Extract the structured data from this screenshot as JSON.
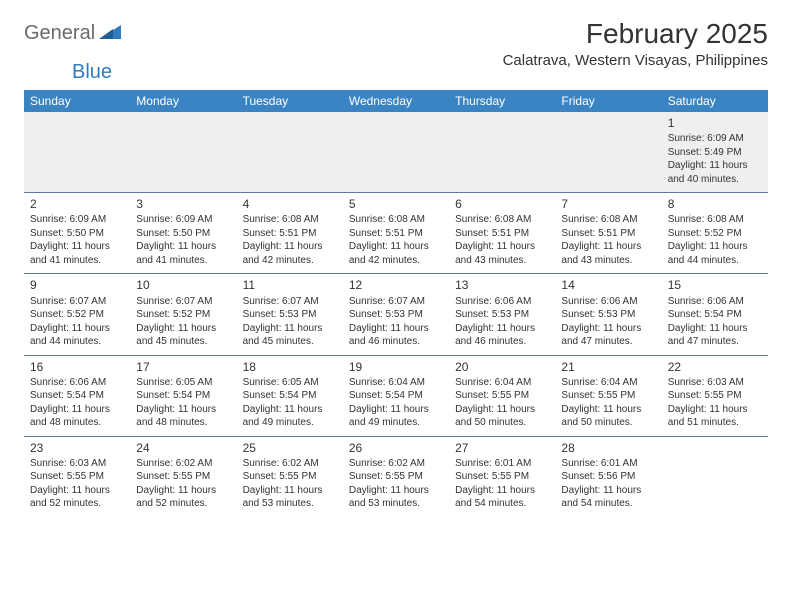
{
  "brand": {
    "general": "General",
    "blue": "Blue"
  },
  "header": {
    "month_title": "February 2025",
    "location": "Calatrava, Western Visayas, Philippines"
  },
  "colors": {
    "header_bg": "#3b84c4",
    "header_text": "#ffffff",
    "row_border": "#5c7a99",
    "first_week_bg": "#efefef",
    "page_bg": "#ffffff",
    "text": "#333333",
    "logo_gray": "#6a6a6a",
    "logo_blue": "#2f7bbf"
  },
  "weekdays": [
    "Sunday",
    "Monday",
    "Tuesday",
    "Wednesday",
    "Thursday",
    "Friday",
    "Saturday"
  ],
  "weeks": [
    [
      null,
      null,
      null,
      null,
      null,
      null,
      {
        "n": "1",
        "sr": "Sunrise: 6:09 AM",
        "ss": "Sunset: 5:49 PM",
        "d1": "Daylight: 11 hours",
        "d2": "and 40 minutes."
      }
    ],
    [
      {
        "n": "2",
        "sr": "Sunrise: 6:09 AM",
        "ss": "Sunset: 5:50 PM",
        "d1": "Daylight: 11 hours",
        "d2": "and 41 minutes."
      },
      {
        "n": "3",
        "sr": "Sunrise: 6:09 AM",
        "ss": "Sunset: 5:50 PM",
        "d1": "Daylight: 11 hours",
        "d2": "and 41 minutes."
      },
      {
        "n": "4",
        "sr": "Sunrise: 6:08 AM",
        "ss": "Sunset: 5:51 PM",
        "d1": "Daylight: 11 hours",
        "d2": "and 42 minutes."
      },
      {
        "n": "5",
        "sr": "Sunrise: 6:08 AM",
        "ss": "Sunset: 5:51 PM",
        "d1": "Daylight: 11 hours",
        "d2": "and 42 minutes."
      },
      {
        "n": "6",
        "sr": "Sunrise: 6:08 AM",
        "ss": "Sunset: 5:51 PM",
        "d1": "Daylight: 11 hours",
        "d2": "and 43 minutes."
      },
      {
        "n": "7",
        "sr": "Sunrise: 6:08 AM",
        "ss": "Sunset: 5:51 PM",
        "d1": "Daylight: 11 hours",
        "d2": "and 43 minutes."
      },
      {
        "n": "8",
        "sr": "Sunrise: 6:08 AM",
        "ss": "Sunset: 5:52 PM",
        "d1": "Daylight: 11 hours",
        "d2": "and 44 minutes."
      }
    ],
    [
      {
        "n": "9",
        "sr": "Sunrise: 6:07 AM",
        "ss": "Sunset: 5:52 PM",
        "d1": "Daylight: 11 hours",
        "d2": "and 44 minutes."
      },
      {
        "n": "10",
        "sr": "Sunrise: 6:07 AM",
        "ss": "Sunset: 5:52 PM",
        "d1": "Daylight: 11 hours",
        "d2": "and 45 minutes."
      },
      {
        "n": "11",
        "sr": "Sunrise: 6:07 AM",
        "ss": "Sunset: 5:53 PM",
        "d1": "Daylight: 11 hours",
        "d2": "and 45 minutes."
      },
      {
        "n": "12",
        "sr": "Sunrise: 6:07 AM",
        "ss": "Sunset: 5:53 PM",
        "d1": "Daylight: 11 hours",
        "d2": "and 46 minutes."
      },
      {
        "n": "13",
        "sr": "Sunrise: 6:06 AM",
        "ss": "Sunset: 5:53 PM",
        "d1": "Daylight: 11 hours",
        "d2": "and 46 minutes."
      },
      {
        "n": "14",
        "sr": "Sunrise: 6:06 AM",
        "ss": "Sunset: 5:53 PM",
        "d1": "Daylight: 11 hours",
        "d2": "and 47 minutes."
      },
      {
        "n": "15",
        "sr": "Sunrise: 6:06 AM",
        "ss": "Sunset: 5:54 PM",
        "d1": "Daylight: 11 hours",
        "d2": "and 47 minutes."
      }
    ],
    [
      {
        "n": "16",
        "sr": "Sunrise: 6:06 AM",
        "ss": "Sunset: 5:54 PM",
        "d1": "Daylight: 11 hours",
        "d2": "and 48 minutes."
      },
      {
        "n": "17",
        "sr": "Sunrise: 6:05 AM",
        "ss": "Sunset: 5:54 PM",
        "d1": "Daylight: 11 hours",
        "d2": "and 48 minutes."
      },
      {
        "n": "18",
        "sr": "Sunrise: 6:05 AM",
        "ss": "Sunset: 5:54 PM",
        "d1": "Daylight: 11 hours",
        "d2": "and 49 minutes."
      },
      {
        "n": "19",
        "sr": "Sunrise: 6:04 AM",
        "ss": "Sunset: 5:54 PM",
        "d1": "Daylight: 11 hours",
        "d2": "and 49 minutes."
      },
      {
        "n": "20",
        "sr": "Sunrise: 6:04 AM",
        "ss": "Sunset: 5:55 PM",
        "d1": "Daylight: 11 hours",
        "d2": "and 50 minutes."
      },
      {
        "n": "21",
        "sr": "Sunrise: 6:04 AM",
        "ss": "Sunset: 5:55 PM",
        "d1": "Daylight: 11 hours",
        "d2": "and 50 minutes."
      },
      {
        "n": "22",
        "sr": "Sunrise: 6:03 AM",
        "ss": "Sunset: 5:55 PM",
        "d1": "Daylight: 11 hours",
        "d2": "and 51 minutes."
      }
    ],
    [
      {
        "n": "23",
        "sr": "Sunrise: 6:03 AM",
        "ss": "Sunset: 5:55 PM",
        "d1": "Daylight: 11 hours",
        "d2": "and 52 minutes."
      },
      {
        "n": "24",
        "sr": "Sunrise: 6:02 AM",
        "ss": "Sunset: 5:55 PM",
        "d1": "Daylight: 11 hours",
        "d2": "and 52 minutes."
      },
      {
        "n": "25",
        "sr": "Sunrise: 6:02 AM",
        "ss": "Sunset: 5:55 PM",
        "d1": "Daylight: 11 hours",
        "d2": "and 53 minutes."
      },
      {
        "n": "26",
        "sr": "Sunrise: 6:02 AM",
        "ss": "Sunset: 5:55 PM",
        "d1": "Daylight: 11 hours",
        "d2": "and 53 minutes."
      },
      {
        "n": "27",
        "sr": "Sunrise: 6:01 AM",
        "ss": "Sunset: 5:55 PM",
        "d1": "Daylight: 11 hours",
        "d2": "and 54 minutes."
      },
      {
        "n": "28",
        "sr": "Sunrise: 6:01 AM",
        "ss": "Sunset: 5:56 PM",
        "d1": "Daylight: 11 hours",
        "d2": "and 54 minutes."
      },
      null
    ]
  ]
}
